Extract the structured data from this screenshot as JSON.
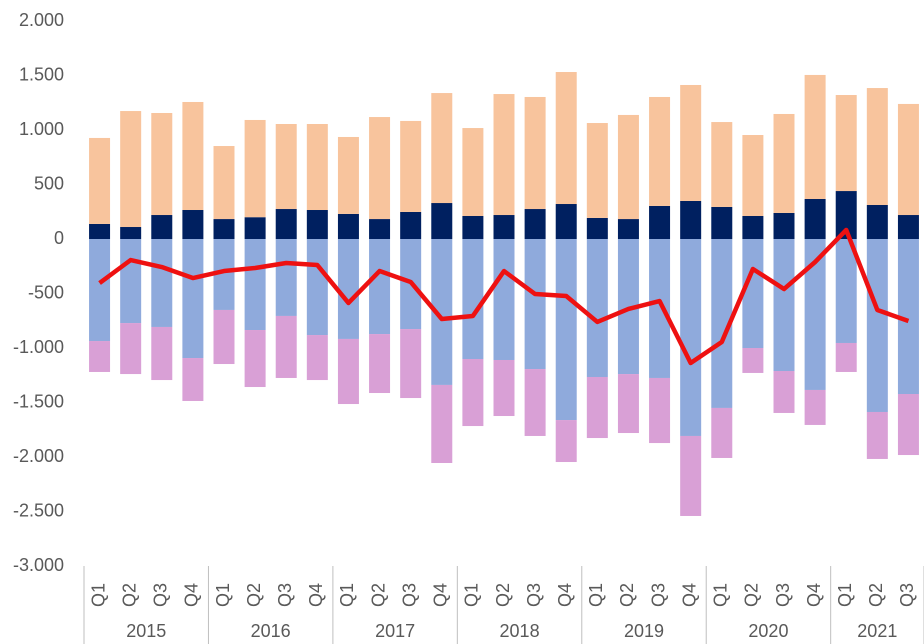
{
  "chart_data": {
    "type": "bar",
    "stacked": true,
    "categories": [
      "Q1",
      "Q2",
      "Q3",
      "Q4",
      "Q1",
      "Q2",
      "Q3",
      "Q4",
      "Q1",
      "Q2",
      "Q3",
      "Q4",
      "Q1",
      "Q2",
      "Q3",
      "Q4",
      "Q1",
      "Q2",
      "Q3",
      "Q4",
      "Q1",
      "Q2",
      "Q3",
      "Q4",
      "Q1",
      "Q2",
      "Q3"
    ],
    "groups": [
      "2015",
      "2016",
      "2017",
      "2018",
      "2019",
      "2020",
      "2021"
    ],
    "ylim": [
      -3000,
      2000
    ],
    "yticks": [
      {
        "value": -3000,
        "label": "-3.000"
      },
      {
        "value": -2500,
        "label": "-2.500"
      },
      {
        "value": -2000,
        "label": "-2.000"
      },
      {
        "value": -1500,
        "label": "-1.500"
      },
      {
        "value": -1000,
        "label": "-1.000"
      },
      -500,
      0,
      500,
      {
        "value": 1000,
        "label": "1.000"
      },
      {
        "value": 1500,
        "label": "1.500"
      },
      {
        "value": 2000,
        "label": "2.000"
      }
    ],
    "grid": false,
    "series": [
      {
        "type": "bar",
        "color": "#002060",
        "values": [
          138,
          110,
          220,
          266,
          183,
          200,
          275,
          266,
          230,
          183,
          248,
          330,
          211,
          220,
          275,
          321,
          193,
          183,
          303,
          349,
          294,
          211,
          239,
          367,
          440,
          312,
          220
        ]
      },
      {
        "type": "bar",
        "color": "#f8c49d",
        "values": [
          789,
          1064,
          936,
          991,
          670,
          892,
          780,
          789,
          706,
          936,
          835,
          1009,
          807,
          1110,
          1028,
          1211,
          871,
          955,
          1000,
          1064,
          779,
          743,
          908,
          1138,
          881,
          1073,
          1019
        ]
      },
      {
        "type": "bar",
        "color": "#8faadc",
        "values": [
          -936,
          -771,
          -807,
          -1092,
          -651,
          -835,
          -706,
          -881,
          -917,
          -872,
          -826,
          -1339,
          -1101,
          -1110,
          -1193,
          -1661,
          -1266,
          -1239,
          -1275,
          -1807,
          -1550,
          -1000,
          -1211,
          -1385,
          -954,
          -1587,
          -1422
        ]
      },
      {
        "type": "bar",
        "color": "#d9a0d6",
        "values": [
          -284,
          -468,
          -487,
          -394,
          -496,
          -523,
          -569,
          -413,
          -597,
          -541,
          -633,
          -716,
          -615,
          -514,
          -614,
          -385,
          -560,
          -541,
          -597,
          -734,
          -459,
          -229,
          -385,
          -321,
          -266,
          -431,
          -560
        ]
      },
      {
        "type": "line",
        "color": "#ee1111",
        "values": [
          -404,
          -193,
          -257,
          -358,
          -294,
          -266,
          -220,
          -239,
          -587,
          -294,
          -394,
          -734,
          -706,
          -294,
          -505,
          -523,
          -761,
          -642,
          -569,
          -1138,
          -945,
          -275,
          -459,
          -211,
          83,
          -651,
          -752
        ]
      }
    ]
  }
}
